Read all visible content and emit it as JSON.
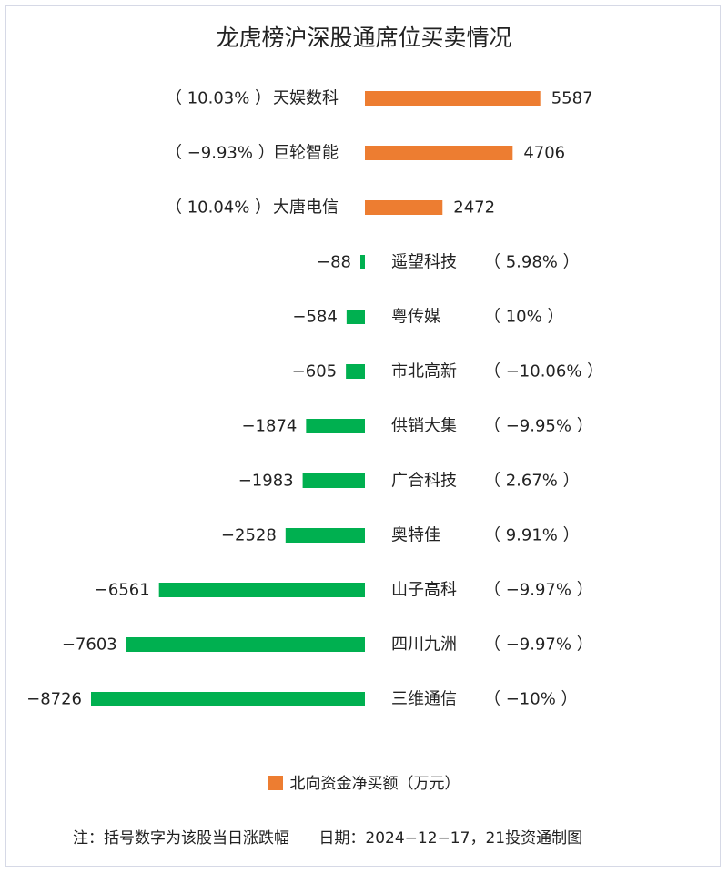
{
  "chart_data": {
    "type": "bar",
    "orientation": "horizontal",
    "title": "龙虎榜沪深股通席位买卖情况",
    "categories": [
      "天娱数科",
      "巨轮智能",
      "大唐电信",
      "遥望科技",
      "粤传媒",
      "市北高新",
      "供销大集",
      "广合科技",
      "奥特佳",
      "山子高科",
      "四川九洲",
      "三维通信"
    ],
    "values": [
      5587,
      4706,
      2472,
      -88,
      -584,
      -605,
      -1874,
      -1983,
      -2528,
      -6561,
      -7603,
      -8726
    ],
    "value_labels": [
      "5587",
      "4706",
      "2472",
      "−88",
      "−584",
      "−605",
      "−1874",
      "−1983",
      "−2528",
      "−6561",
      "−7603",
      "−8726"
    ],
    "changes": [
      "（ 10.03% ）",
      "（ −9.93% ）",
      "（ 10.04% ）",
      "（ 5.98% ）",
      "（ 10% ）",
      "（ −10.06% ）",
      "（ −9.95% ）",
      "（ 2.67% ）",
      "（ 9.91% ）",
      "（ −9.97% ）",
      "（ −9.97% ）",
      "（ −10% ）"
    ],
    "series": [
      {
        "name": "北向资金净买额（万元）",
        "values": [
          5587,
          4706,
          2472,
          -88,
          -584,
          -605,
          -1874,
          -1983,
          -2528,
          -6561,
          -7603,
          -8726
        ]
      }
    ],
    "colors": {
      "positive": "#ED7D31",
      "negative": "#00B050"
    },
    "legend_position": "bottom",
    "grid": false
  },
  "legend_label": "北向资金净买额（万元）",
  "note": "注：括号数字为该股当日涨跌幅      日期：2024−12−17，21投资通制图"
}
